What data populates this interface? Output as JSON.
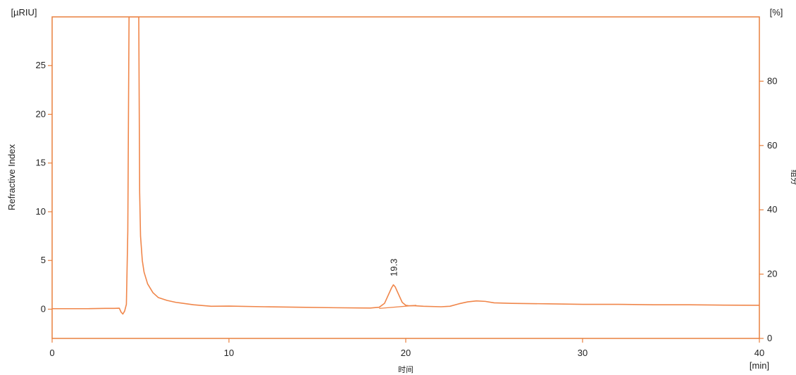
{
  "colors": {
    "trace": "#f0864a",
    "axis": "#e8803e",
    "text": "#222222",
    "background": "#ffffff"
  },
  "chart_data": {
    "type": "line",
    "title": "",
    "xlabel": "时间",
    "x_unit": "[min]",
    "ylabel": "Refractive Index",
    "y_unit": "[µRIU]",
    "y2label": "组分",
    "y2_unit": "[%]",
    "xlim": [
      0,
      40
    ],
    "ylim": [
      -3,
      30
    ],
    "y2lim": [
      0,
      100
    ],
    "xticks": [
      0,
      10,
      20,
      30,
      40
    ],
    "yticks": [
      0,
      5,
      10,
      15,
      20,
      25
    ],
    "y2ticks": [
      0,
      20,
      40,
      60,
      80
    ],
    "grid": false,
    "annotations": [
      {
        "text": "19.3",
        "x": 19.3,
        "y": 2.5
      }
    ],
    "series": [
      {
        "x": [
          0.0,
          1.0,
          2.0,
          3.0,
          3.5,
          3.8,
          3.9,
          4.0,
          4.1,
          4.2,
          4.28,
          4.35,
          4.9,
          4.95,
          5.0,
          5.1,
          5.2,
          5.4,
          5.7,
          6.0,
          6.5,
          7.0,
          8.0,
          9.0,
          10.0,
          12.0,
          14.0,
          16.0,
          18.0,
          18.5,
          18.8,
          19.0,
          19.2,
          19.3,
          19.4,
          19.6,
          19.8,
          20.0,
          20.2,
          20.5,
          21.0,
          22.0,
          22.5,
          23.0,
          23.5,
          24.0,
          24.5,
          25.0,
          26.0,
          28.0,
          30.0,
          32.0,
          34.0,
          36.0,
          38.0,
          40.0
        ],
        "y": [
          0.05,
          0.05,
          0.05,
          0.08,
          0.08,
          0.1,
          -0.3,
          -0.5,
          -0.2,
          0.5,
          8.0,
          30.0,
          30.0,
          12.0,
          7.5,
          5.0,
          3.8,
          2.6,
          1.7,
          1.2,
          0.9,
          0.7,
          0.45,
          0.3,
          0.32,
          0.25,
          0.2,
          0.15,
          0.12,
          0.2,
          0.6,
          1.4,
          2.2,
          2.5,
          2.3,
          1.5,
          0.7,
          0.4,
          0.35,
          0.35,
          0.3,
          0.25,
          0.3,
          0.55,
          0.75,
          0.85,
          0.8,
          0.65,
          0.6,
          0.55,
          0.5,
          0.5,
          0.45,
          0.45,
          0.42,
          0.4
        ]
      },
      {
        "x": [
          18.5,
          20.6
        ],
        "y": [
          0.08,
          0.4
        ]
      }
    ]
  }
}
